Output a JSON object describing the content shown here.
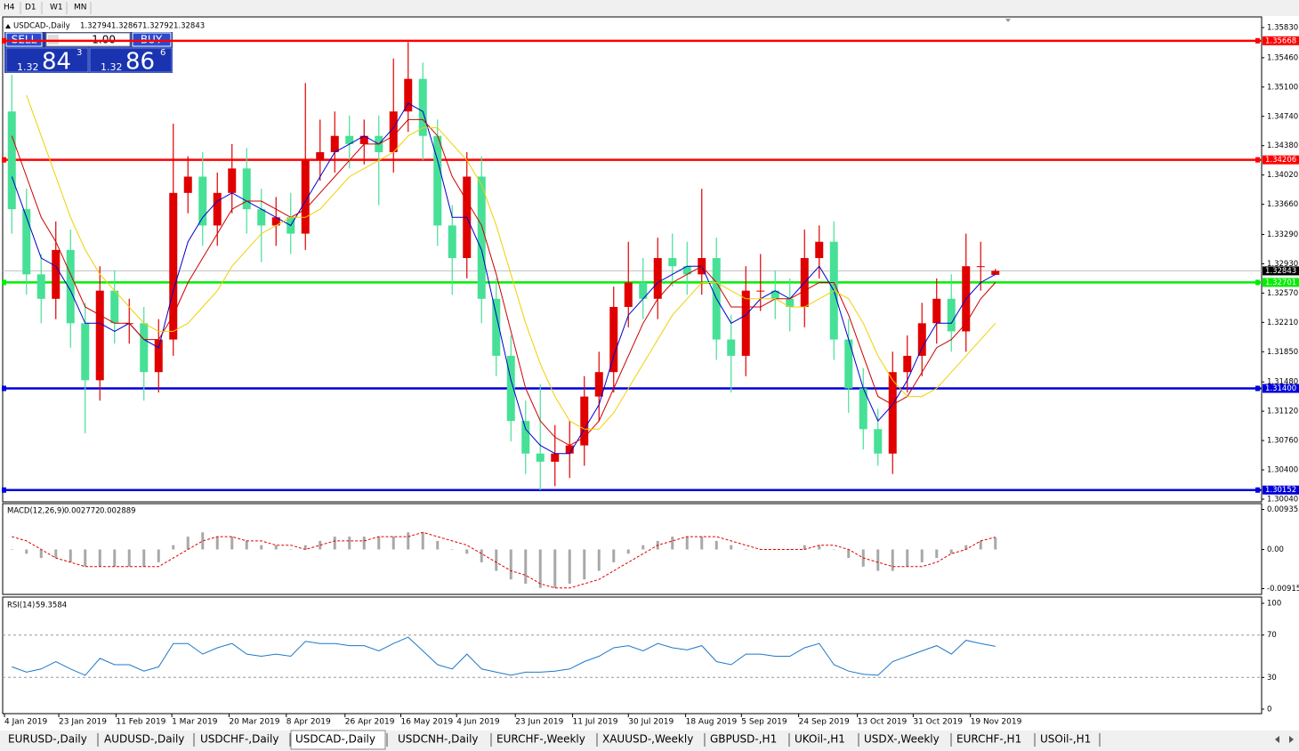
{
  "toolbar": [
    "H4",
    "D1",
    "W1",
    "MN"
  ],
  "trade_panel": {
    "sell_label": "SELL",
    "lot": "1.00",
    "buy_label": "BUY",
    "sell": {
      "prefix": 1.32,
      "pips": 84,
      "fraction": 3
    },
    "buy": {
      "prefix": 1.32,
      "pips": 86,
      "fraction": 6
    }
  },
  "tabs": [
    "EURUSD-,Daily",
    "AUDUSD-,Daily",
    "USDCHF-,Daily",
    "USDCAD-,Daily",
    "USDCNH-,Daily",
    "EURCHF-,Weekly",
    "XAUUSD-,Weekly",
    "GBPUSD-,H1",
    "UKOil-,H1",
    "USDX-,Weekly",
    "EURCHF-,H1",
    "USOil-,H1"
  ],
  "active_tab": 3,
  "chart_data": [
    {
      "type": "candlestick",
      "title": "USDCAD-,Daily",
      "ohlc": [
        1.32794,
        1.32867,
        1.32792,
        1.32843
      ],
      "up_color": "#e00000",
      "down_color": "#46e096",
      "xlim": [
        0,
        68
      ],
      "ylim": [
        1.30018,
        1.3595
      ],
      "yticks": [
        {
          "value": 1.3583,
          "label": "1.35830"
        },
        {
          "value": 1.3546,
          "label": "1.35460"
        },
        {
          "value": 1.351,
          "label": "1.35100"
        },
        {
          "value": 1.3474,
          "label": "1.34740"
        },
        {
          "value": 1.3438,
          "label": "1.34380"
        },
        {
          "value": 1.3402,
          "label": "1.34020"
        },
        {
          "value": 1.3366,
          "label": "1.33660"
        },
        {
          "value": 1.3329,
          "label": "1.33290"
        },
        {
          "value": 1.3293,
          "label": "1.32930"
        },
        {
          "value": 1.3257,
          "label": "1.32570"
        },
        {
          "value": 1.3221,
          "label": "1.32210"
        },
        {
          "value": 1.3185,
          "label": "1.31850"
        },
        {
          "value": 1.3148,
          "label": "1.31480"
        },
        {
          "value": 1.3112,
          "label": "1.31120"
        },
        {
          "value": 1.3076,
          "label": "1.30760"
        },
        {
          "value": 1.304,
          "label": "1.30400"
        },
        {
          "value": 1.3004,
          "label": "1.30040"
        }
      ],
      "xticks": [
        {
          "value": 0,
          "label": "4 Jan 2019"
        },
        {
          "value": 3.7,
          "label": "23 Jan 2019"
        },
        {
          "value": 7.6,
          "label": "11 Feb 2019"
        },
        {
          "value": 11.4,
          "label": "1 Mar 2019"
        },
        {
          "value": 15.3,
          "label": "20 Mar 2019"
        },
        {
          "value": 19.2,
          "label": "8 Apr 2019"
        },
        {
          "value": 23.2,
          "label": "26 Apr 2019"
        },
        {
          "value": 27,
          "label": "16 May 2019"
        },
        {
          "value": 30.8,
          "label": "4 Jun 2019"
        },
        {
          "value": 34.8,
          "label": "23 Jun 2019"
        },
        {
          "value": 38.7,
          "label": "11 Jul 2019"
        },
        {
          "value": 42.5,
          "label": "30 Jul 2019"
        },
        {
          "value": 46.4,
          "label": "18 Aug 2019"
        },
        {
          "value": 50.2,
          "label": "5 Sep 2019"
        },
        {
          "value": 54.1,
          "label": "24 Sep 2019"
        },
        {
          "value": 58.1,
          "label": "13 Oct 2019"
        },
        {
          "value": 61.9,
          "label": "31 Oct 2019"
        },
        {
          "value": 65.8,
          "label": "19 Nov 2019"
        }
      ],
      "open": [
        1.348,
        1.336,
        1.328,
        1.325,
        1.331,
        1.322,
        1.315,
        1.326,
        1.322,
        1.322,
        1.316,
        1.32,
        1.338,
        1.34,
        1.334,
        1.338,
        1.341,
        1.336,
        1.334,
        1.335,
        1.333,
        1.342,
        1.343,
        1.345,
        1.344,
        1.345,
        1.343,
        1.348,
        1.352,
        1.345,
        1.334,
        1.33,
        1.34,
        1.325,
        1.318,
        1.31,
        1.306,
        1.305,
        1.306,
        1.307,
        1.313,
        1.316,
        1.324,
        1.327,
        1.325,
        1.33,
        1.329,
        1.328,
        1.33,
        1.32,
        1.318,
        1.326,
        1.326,
        1.325,
        1.324,
        1.33,
        1.332,
        1.32,
        1.314,
        1.309,
        1.306,
        1.316,
        1.318,
        1.322,
        1.325,
        1.321,
        1.329,
        1.32794
      ],
      "high": [
        1.3525,
        1.3385,
        1.3305,
        1.3345,
        1.3335,
        1.3245,
        1.329,
        1.3285,
        1.325,
        1.324,
        1.3225,
        1.3465,
        1.3425,
        1.343,
        1.3405,
        1.344,
        1.3435,
        1.3385,
        1.3375,
        1.338,
        1.3515,
        1.347,
        1.348,
        1.3475,
        1.347,
        1.3475,
        1.3545,
        1.3565,
        1.354,
        1.347,
        1.3365,
        1.343,
        1.3425,
        1.3275,
        1.3205,
        1.3125,
        1.3145,
        1.3095,
        1.31,
        1.3155,
        1.3185,
        1.3265,
        1.332,
        1.33,
        1.3325,
        1.333,
        1.332,
        1.3385,
        1.3325,
        1.323,
        1.329,
        1.3305,
        1.3285,
        1.3275,
        1.3335,
        1.334,
        1.3345,
        1.3225,
        1.3165,
        1.3115,
        1.3185,
        1.3205,
        1.3245,
        1.3275,
        1.328,
        1.333,
        1.332,
        1.32867
      ],
      "low": [
        1.333,
        1.3255,
        1.322,
        1.3225,
        1.319,
        1.3085,
        1.3125,
        1.3195,
        1.3195,
        1.3125,
        1.3135,
        1.318,
        1.3355,
        1.3315,
        1.3315,
        1.3355,
        1.333,
        1.3295,
        1.3315,
        1.3305,
        1.331,
        1.3395,
        1.3405,
        1.341,
        1.3415,
        1.3365,
        1.3405,
        1.3455,
        1.342,
        1.3315,
        1.3255,
        1.3275,
        1.322,
        1.3155,
        1.3075,
        1.3035,
        1.3015,
        1.302,
        1.303,
        1.3045,
        1.31,
        1.3135,
        1.3215,
        1.3225,
        1.3225,
        1.3265,
        1.3255,
        1.3255,
        1.3175,
        1.3135,
        1.3155,
        1.3235,
        1.3225,
        1.321,
        1.3215,
        1.3275,
        1.3175,
        1.311,
        1.3065,
        1.3045,
        1.3035,
        1.3135,
        1.3155,
        1.3195,
        1.3185,
        1.3185,
        1.326,
        1.32792
      ],
      "close": [
        1.336,
        1.328,
        1.325,
        1.331,
        1.322,
        1.315,
        1.326,
        1.322,
        1.322,
        1.316,
        1.32,
        1.338,
        1.34,
        1.334,
        1.338,
        1.341,
        1.336,
        1.334,
        1.335,
        1.333,
        1.342,
        1.343,
        1.345,
        1.344,
        1.345,
        1.343,
        1.348,
        1.352,
        1.345,
        1.334,
        1.33,
        1.34,
        1.325,
        1.318,
        1.31,
        1.306,
        1.305,
        1.306,
        1.307,
        1.313,
        1.316,
        1.324,
        1.327,
        1.325,
        1.33,
        1.329,
        1.328,
        1.33,
        1.32,
        1.318,
        1.326,
        1.326,
        1.325,
        1.324,
        1.33,
        1.332,
        1.32,
        1.314,
        1.309,
        1.306,
        1.316,
        1.318,
        1.322,
        1.325,
        1.321,
        1.329,
        1.329,
        1.32843
      ],
      "overlays": [
        {
          "color": "#0000cc",
          "values": [
            1.34,
            1.335,
            1.33,
            1.329,
            1.326,
            1.322,
            1.322,
            1.321,
            1.322,
            1.32,
            1.319,
            1.326,
            1.332,
            1.335,
            1.337,
            1.338,
            1.337,
            1.336,
            1.335,
            1.334,
            1.337,
            1.34,
            1.343,
            1.344,
            1.345,
            1.344,
            1.346,
            1.349,
            1.348,
            1.342,
            1.335,
            1.335,
            1.331,
            1.323,
            1.315,
            1.309,
            1.307,
            1.306,
            1.306,
            1.309,
            1.312,
            1.318,
            1.323,
            1.325,
            1.327,
            1.328,
            1.329,
            1.329,
            1.325,
            1.322,
            1.323,
            1.325,
            1.326,
            1.325,
            1.327,
            1.329,
            1.326,
            1.32,
            1.314,
            1.31,
            1.312,
            1.315,
            1.319,
            1.322,
            1.322,
            1.325,
            1.327,
            1.328
          ]
        },
        {
          "color": "#cc0000",
          "values": [
            1.345,
            1.34,
            1.335,
            1.332,
            1.328,
            1.324,
            1.323,
            1.322,
            1.322,
            1.32,
            1.32,
            1.323,
            1.327,
            1.33,
            1.333,
            1.336,
            1.337,
            1.337,
            1.336,
            1.335,
            1.336,
            1.338,
            1.34,
            1.342,
            1.344,
            1.344,
            1.345,
            1.347,
            1.347,
            1.345,
            1.34,
            1.337,
            1.334,
            1.328,
            1.321,
            1.314,
            1.31,
            1.308,
            1.307,
            1.308,
            1.31,
            1.314,
            1.318,
            1.322,
            1.325,
            1.327,
            1.328,
            1.329,
            1.327,
            1.324,
            1.324,
            1.324,
            1.325,
            1.325,
            1.326,
            1.327,
            1.327,
            1.323,
            1.318,
            1.313,
            1.312,
            1.313,
            1.316,
            1.319,
            1.32,
            1.322,
            1.325,
            1.327
          ]
        },
        {
          "color": "#f0d000",
          "values": [
            null,
            1.35,
            1.345,
            1.34,
            1.335,
            1.331,
            1.328,
            1.326,
            1.324,
            1.322,
            1.321,
            1.321,
            1.322,
            1.324,
            1.326,
            1.329,
            1.331,
            1.333,
            1.334,
            1.335,
            1.335,
            1.336,
            1.338,
            1.34,
            1.341,
            1.342,
            1.343,
            1.345,
            1.346,
            1.346,
            1.344,
            1.342,
            1.339,
            1.334,
            1.328,
            1.322,
            1.317,
            1.313,
            1.31,
            1.309,
            1.309,
            1.311,
            1.314,
            1.317,
            1.32,
            1.323,
            1.325,
            1.327,
            1.327,
            1.326,
            1.325,
            1.325,
            1.325,
            1.324,
            1.324,
            1.325,
            1.326,
            1.325,
            1.322,
            1.318,
            1.315,
            1.313,
            1.313,
            1.314,
            1.316,
            1.318,
            1.32,
            1.322
          ]
        }
      ],
      "levels": [
        {
          "value": 1.35668,
          "color": "#ff0000"
        },
        {
          "value": 1.34206,
          "color": "#ff0000"
        },
        {
          "value": 1.32701,
          "color": "#00ee00"
        },
        {
          "value": 1.314,
          "label": "1.31400",
          "color": "#0000dd"
        },
        {
          "value": 1.30152,
          "color": "#0000dd"
        }
      ],
      "last": 1.32843
    },
    {
      "type": "macd",
      "title": "MACD(12,26,9)",
      "readout": [
        0.002772,
        0.002889
      ],
      "xlim": [
        0,
        68
      ],
      "ylim": [
        -0.0105,
        0.0105
      ],
      "yticks": [
        0.009353,
        {
          "value": 0,
          "label": "0.00"
        },
        -0.00915
      ],
      "histogram_color": "#a8a8a8",
      "signal_color": "#e00000",
      "histogram": [
        0.0,
        -0.001,
        -0.002,
        -0.002,
        -0.003,
        -0.004,
        -0.004,
        -0.004,
        -0.004,
        -0.004,
        -0.003,
        0.001,
        0.003,
        0.004,
        0.003,
        0.003,
        0.002,
        0.001,
        0.001,
        0.0,
        0.001,
        0.002,
        0.003,
        0.003,
        0.003,
        0.003,
        0.003,
        0.004,
        0.004,
        0.002,
        0.0,
        -0.001,
        -0.003,
        -0.005,
        -0.007,
        -0.008,
        -0.009,
        -0.009,
        -0.008,
        -0.007,
        -0.005,
        -0.003,
        -0.001,
        0.001,
        0.002,
        0.003,
        0.003,
        0.003,
        0.002,
        0.001,
        0.0,
        0.0,
        0.0,
        0.0,
        0.001,
        0.001,
        0.0,
        -0.002,
        -0.004,
        -0.005,
        -0.005,
        -0.004,
        -0.003,
        -0.002,
        -0.001,
        0.001,
        0.002,
        0.002772
      ],
      "signal": [
        0.003,
        0.002,
        0.0,
        -0.002,
        -0.003,
        -0.004,
        -0.004,
        -0.004,
        -0.004,
        -0.004,
        -0.004,
        -0.002,
        0.0,
        0.002,
        0.003,
        0.003,
        0.002,
        0.002,
        0.001,
        0.001,
        0.0,
        0.001,
        0.002,
        0.002,
        0.002,
        0.003,
        0.003,
        0.003,
        0.004,
        0.003,
        0.002,
        0.001,
        -0.001,
        -0.003,
        -0.005,
        -0.006,
        -0.008,
        -0.009,
        -0.009,
        -0.008,
        -0.007,
        -0.005,
        -0.003,
        -0.001,
        0.001,
        0.002,
        0.003,
        0.003,
        0.003,
        0.002,
        0.001,
        0.0,
        0.0,
        0.0,
        0.0,
        0.001,
        0.001,
        0.0,
        -0.002,
        -0.003,
        -0.004,
        -0.004,
        -0.004,
        -0.003,
        -0.001,
        0.0,
        0.002,
        0.002889
      ]
    },
    {
      "type": "line",
      "title": "RSI(14)",
      "readout": [
        59.3584
      ],
      "xlim": [
        0,
        68
      ],
      "ylim": [
        0,
        100
      ],
      "yticks": [
        100,
        70,
        30,
        0
      ],
      "levels": [
        70,
        30
      ],
      "color": "#1e78c8",
      "values": [
        40,
        35,
        38,
        45,
        38,
        32,
        48,
        42,
        42,
        36,
        40,
        62,
        62,
        52,
        58,
        62,
        52,
        50,
        52,
        50,
        64,
        62,
        62,
        60,
        60,
        55,
        62,
        68,
        55,
        42,
        38,
        52,
        38,
        35,
        32,
        35,
        35,
        36,
        38,
        45,
        50,
        58,
        60,
        55,
        62,
        58,
        56,
        60,
        45,
        42,
        52,
        52,
        50,
        50,
        58,
        62,
        42,
        36,
        33,
        32,
        45,
        50,
        55,
        60,
        52,
        65,
        62,
        59.3584
      ]
    }
  ]
}
